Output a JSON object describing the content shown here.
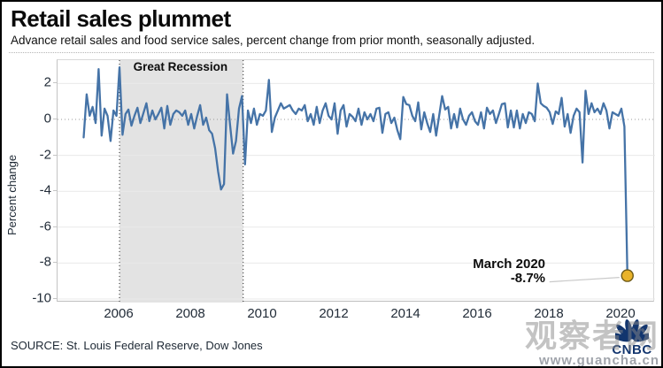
{
  "header": {
    "title": "Retail sales plummet",
    "subtitle": "Advance retail sales and food service sales, percent change from prior month, seasonally adjusted."
  },
  "footer": {
    "source": "SOURCE: St. Louis Federal Reserve, Dow Jones"
  },
  "watermark": {
    "line1": "观察者网",
    "line2": "www.guancha.cn"
  },
  "logo": {
    "brand": "CNBC"
  },
  "annotation": {
    "label": "March 2020",
    "value": "-8.7%"
  },
  "colors": {
    "line": "#4573a7",
    "dot_fill": "#e9b32a",
    "dot_stroke": "#6e5a17",
    "band": "#e3e3e3",
    "band_edge": "#222222",
    "grid": "#e9e9e9",
    "zero_line": "#9a9a9a",
    "connector": "#c9c9c9",
    "navy": "#12356e",
    "text": "#1c2733"
  },
  "chart_data": {
    "type": "line",
    "title": "Retail sales plummet",
    "xlabel": "",
    "ylabel": "Percent change",
    "frequency": "monthly",
    "start_year": 2005,
    "start_month": 1,
    "end_label": "March 2020",
    "ylim": [
      -10.2,
      3.3
    ],
    "grid": true,
    "y_ticks": [
      2,
      0,
      -2,
      -4,
      -6,
      -8,
      -10
    ],
    "x_ticks": [
      2006,
      2008,
      2010,
      2012,
      2014,
      2016,
      2018,
      2020
    ],
    "recession_band": {
      "label": "Great Recession",
      "start": 2006.0,
      "end": 2009.45
    },
    "last_point": {
      "label": "March 2020",
      "value": -8.7
    },
    "values": [
      -1.0,
      1.4,
      0.2,
      0.7,
      -0.2,
      2.8,
      -0.9,
      0.6,
      0.2,
      -1.2,
      0.5,
      0.2,
      2.9,
      -0.85,
      0.3,
      0.55,
      -0.35,
      0.2,
      0.65,
      -0.2,
      0.35,
      0.9,
      -0.1,
      0.5,
      0.0,
      0.3,
      0.65,
      -0.5,
      0.75,
      -0.3,
      0.3,
      0.5,
      0.4,
      0.2,
      0.5,
      -0.3,
      0.3,
      -0.5,
      0.2,
      0.8,
      -0.3,
      0.1,
      -0.6,
      -0.8,
      -1.6,
      -2.9,
      -3.9,
      -3.6,
      1.4,
      -0.3,
      -1.9,
      -1.2,
      0.6,
      1.3,
      -2.5,
      0.5,
      -0.2,
      0.6,
      -0.3,
      0.3,
      0.2,
      0.5,
      2.2,
      -0.7,
      0.1,
      0.5,
      0.9,
      0.6,
      0.7,
      0.8,
      0.5,
      0.3,
      0.6,
      0.5,
      0.8,
      -0.1,
      0.3,
      -0.3,
      0.7,
      -0.2,
      0.5,
      0.9,
      0.2,
      0.0,
      0.9,
      -0.8,
      0.5,
      0.8,
      -0.4,
      0.3,
      0.15,
      -0.1,
      0.6,
      -0.3,
      0.4,
      0.0,
      0.3,
      -0.1,
      0.6,
      0.65,
      -0.75,
      0.3,
      0.4,
      -0.2,
      0.1,
      -0.6,
      -1.1,
      1.25,
      0.85,
      0.8,
      0.2,
      -0.1,
      0.95,
      -0.55,
      0.4,
      -0.2,
      -0.7,
      0.3,
      -0.9,
      0.2,
      1.3,
      0.55,
      0.7,
      -0.5,
      0.3,
      -0.45,
      0.6,
      0.0,
      -0.3,
      0.2,
      0.4,
      -0.1,
      -0.3,
      0.4,
      -0.5,
      0.65,
      0.3,
      0.5,
      -0.2,
      0.3,
      0.85,
      0.9,
      -0.45,
      0.5,
      -0.45,
      0.5,
      -0.5,
      0.3,
      -0.2,
      0.4,
      0.3,
      -0.1,
      2.0,
      0.9,
      0.75,
      0.65,
      0.4,
      -0.25,
      0.45,
      0.3,
      1.2,
      -0.4,
      0.3,
      -0.75,
      0.2,
      0.6,
      0.4,
      -2.4,
      1.6,
      0.3,
      0.9,
      0.4,
      0.6,
      0.3,
      0.9,
      0.5,
      -0.5,
      0.4,
      0.3,
      0.2,
      0.6,
      -0.4,
      -8.7
    ]
  }
}
